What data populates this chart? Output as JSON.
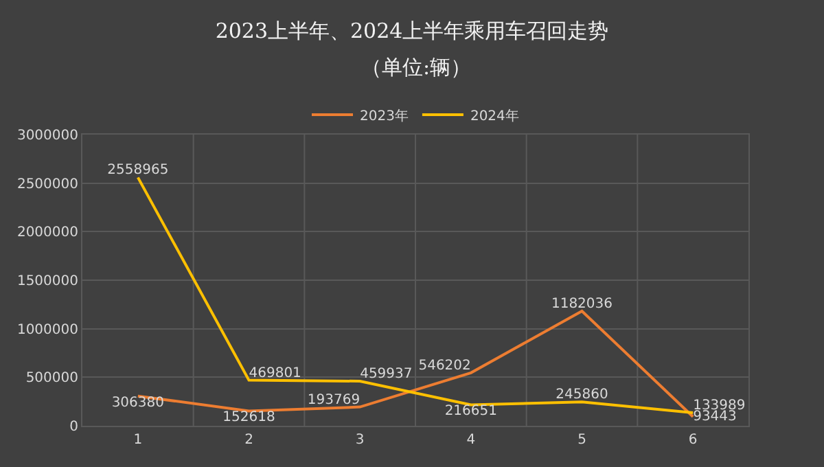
{
  "chart_data": {
    "type": "line",
    "title": "2023上半年、2024上半年乘用车召回走势",
    "subtitle": "（单位:辆）",
    "categories": [
      "1",
      "2",
      "3",
      "4",
      "5",
      "6"
    ],
    "series": [
      {
        "name": "2023年",
        "color": "#ed7d31",
        "values": [
          306380,
          152618,
          193769,
          546202,
          1182036,
          93443
        ]
      },
      {
        "name": "2024年",
        "color": "#ffc000",
        "values": [
          2558965,
          469801,
          459937,
          216651,
          245860,
          133989
        ]
      }
    ],
    "ylim": [
      0,
      3000000
    ],
    "yticks": [
      0,
      500000,
      1000000,
      1500000,
      2000000,
      2500000,
      3000000
    ],
    "grid": true,
    "legend": "top",
    "data_labels": true,
    "marker": "none",
    "line_style": "solid"
  }
}
